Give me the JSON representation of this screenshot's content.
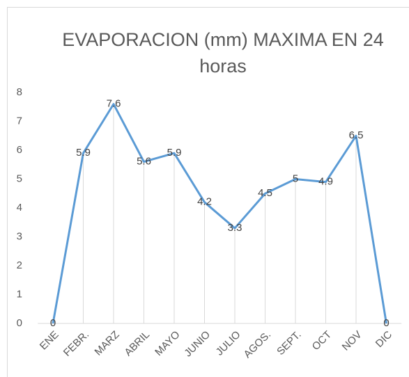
{
  "chart_data": {
    "type": "line",
    "title": "EVAPORACION (mm) MAXIMA EN 24 horas",
    "categories": [
      "ENE",
      "FEBR.",
      "MARZ",
      "ABRIL",
      "MAYO",
      "JUNIO",
      "JULIO",
      "AGOS.",
      "SEPT.",
      "OCT",
      "NOV",
      "DIC"
    ],
    "values": [
      0,
      5.9,
      7.6,
      5.6,
      5.9,
      4.2,
      3.3,
      4.5,
      5,
      4.9,
      6.5,
      0
    ],
    "color": "#5b9bd5",
    "ylim": [
      0,
      8
    ],
    "yticks": [
      0,
      1,
      2,
      3,
      4,
      5,
      6,
      7,
      8
    ],
    "drop_lines": true
  }
}
